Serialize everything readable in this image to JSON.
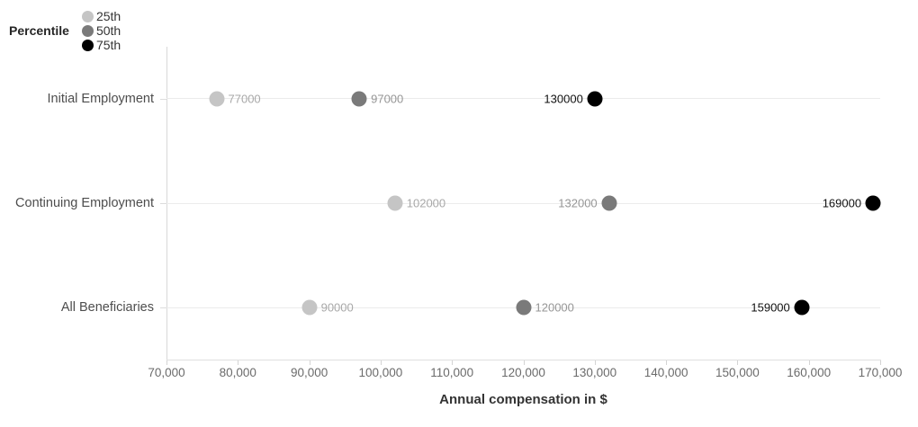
{
  "legend": {
    "title": "Percentile",
    "items": [
      {
        "label": "25th",
        "color": "#c5c5c5"
      },
      {
        "label": "50th",
        "color": "#7a7a7a"
      },
      {
        "label": "75th",
        "color": "#000000"
      }
    ]
  },
  "chart_data": {
    "type": "scatter",
    "variant": "dot-plot",
    "title": "",
    "categories": [
      "Initial Employment",
      "Continuing Employment",
      "All Beneficiaries"
    ],
    "series": [
      {
        "name": "25th",
        "values": [
          77000,
          102000,
          90000
        ],
        "labels": [
          "77000",
          "102000",
          "90000"
        ],
        "label_sides": [
          "right",
          "right",
          "right"
        ],
        "dot_color": "#c5c5c5",
        "label_color": "#a8a8a8"
      },
      {
        "name": "50th",
        "values": [
          97000,
          132000,
          120000
        ],
        "labels": [
          "97000",
          "132000",
          "120000"
        ],
        "label_sides": [
          "right",
          "left",
          "right"
        ],
        "dot_color": "#7a7a7a",
        "label_color": "#969696"
      },
      {
        "name": "75th",
        "values": [
          130000,
          169000,
          159000
        ],
        "labels": [
          "130000",
          "169000",
          "159000"
        ],
        "label_sides": [
          "left",
          "left",
          "left"
        ],
        "dot_color": "#000000",
        "label_color": "#111111"
      }
    ],
    "xlabel": "Annual compensation in $",
    "ylabel": "",
    "xlim": [
      70000,
      170000
    ],
    "xticks": [
      70000,
      80000,
      90000,
      100000,
      110000,
      120000,
      130000,
      140000,
      150000,
      160000,
      170000
    ],
    "xtick_labels": [
      "70,000",
      "80,000",
      "90,000",
      "100,000",
      "110,000",
      "120,000",
      "130,000",
      "140,000",
      "150,000",
      "160,000",
      "170,000"
    ],
    "grid": "horizontal-row-lines",
    "legend_position": "top-left"
  }
}
